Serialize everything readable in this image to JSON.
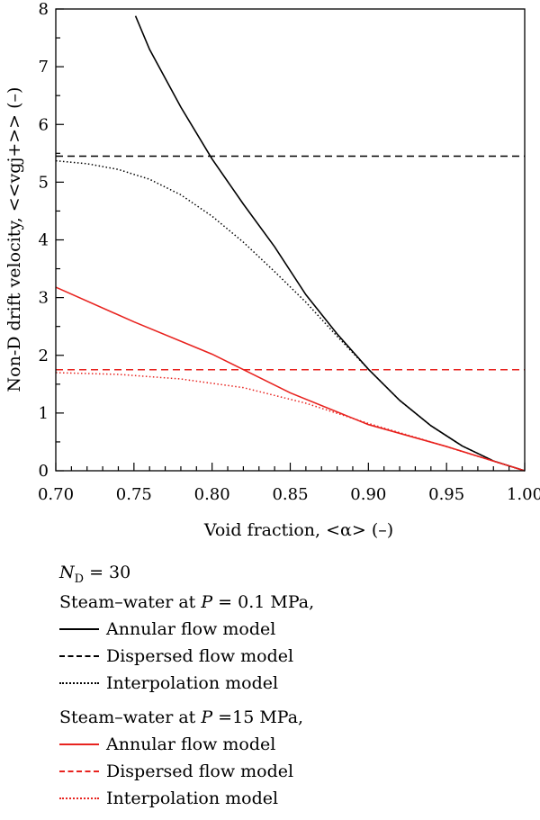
{
  "colors": {
    "series_a": "#000000",
    "series_b": "#e8231f",
    "axis": "#000000"
  },
  "legend": {
    "nd_symbol": "N",
    "nd_sub": "D",
    "nd_value": " = 30",
    "groups": [
      {
        "prefix": "Steam–water at ",
        "pvar": "P",
        "psuffix": " = 0.1 MPa,",
        "color": "#000000",
        "items": [
          {
            "label": "Annular flow model",
            "style": "solid"
          },
          {
            "label": "Dispersed flow model",
            "style": "dashed"
          },
          {
            "label": "Interpolation model",
            "style": "dotted"
          }
        ]
      },
      {
        "prefix": "Steam–water at ",
        "pvar": "P",
        "psuffix": " =15 MPa,",
        "color": "#e8231f",
        "items": [
          {
            "label": "Annular flow model",
            "style": "solid"
          },
          {
            "label": "Dispersed flow model",
            "style": "dashed"
          },
          {
            "label": "Interpolation model",
            "style": "dotted"
          }
        ]
      }
    ]
  },
  "chart_data": {
    "type": "line",
    "title": "",
    "xlabel": "Void fraction, <α> (–)",
    "ylabel": "Non-D drift velocity, <<vgj+>> (–)",
    "xlim": [
      0.7,
      1.0
    ],
    "ylim": [
      0,
      8
    ],
    "xticks": [
      "0.70",
      "0.75",
      "0.80",
      "0.85",
      "0.90",
      "0.95",
      "1.00"
    ],
    "yticks": [
      "0",
      "1",
      "2",
      "3",
      "4",
      "5",
      "6",
      "7",
      "8"
    ],
    "grid": false,
    "legend_position": "below",
    "series": [
      {
        "group": "P = 0.1 MPa",
        "model": "Annular flow model",
        "color": "#000000",
        "style": "solid",
        "x": [
          0.751,
          0.76,
          0.78,
          0.8,
          0.82,
          0.84,
          0.86,
          0.88,
          0.9,
          0.92,
          0.94,
          0.96,
          0.98,
          1.0
        ],
        "y": [
          7.88,
          7.3,
          6.3,
          5.4,
          4.62,
          3.88,
          3.05,
          2.37,
          1.76,
          1.22,
          0.78,
          0.43,
          0.17,
          0.0
        ]
      },
      {
        "group": "P = 0.1 MPa",
        "model": "Dispersed flow model",
        "color": "#000000",
        "style": "dashed",
        "x": [
          0.7,
          1.0
        ],
        "y": [
          5.45,
          5.45
        ]
      },
      {
        "group": "P = 0.1 MPa",
        "model": "Interpolation model",
        "color": "#000000",
        "style": "dotted",
        "x": [
          0.7,
          0.72,
          0.74,
          0.76,
          0.78,
          0.8,
          0.82,
          0.84,
          0.86,
          0.88,
          0.9,
          0.92,
          0.94,
          0.96,
          0.98,
          1.0
        ],
        "y": [
          5.37,
          5.32,
          5.22,
          5.05,
          4.78,
          4.41,
          3.96,
          3.45,
          2.92,
          2.33,
          1.76,
          1.22,
          0.78,
          0.43,
          0.17,
          0.0
        ]
      },
      {
        "group": "P = 15 MPa",
        "model": "Annular flow model",
        "color": "#e8231f",
        "style": "solid",
        "x": [
          0.7,
          0.75,
          0.8,
          0.85,
          0.9,
          0.95,
          1.0
        ],
        "y": [
          3.18,
          2.58,
          2.02,
          1.35,
          0.8,
          0.42,
          0.0
        ]
      },
      {
        "group": "P = 15 MPa",
        "model": "Dispersed flow model",
        "color": "#e8231f",
        "style": "dashed",
        "x": [
          0.7,
          1.0
        ],
        "y": [
          1.75,
          1.75
        ]
      },
      {
        "group": "P = 15 MPa",
        "model": "Interpolation model",
        "color": "#e8231f",
        "style": "dotted",
        "x": [
          0.7,
          0.74,
          0.78,
          0.82,
          0.86,
          0.9,
          0.94,
          0.97,
          1.0
        ],
        "y": [
          1.7,
          1.67,
          1.59,
          1.44,
          1.17,
          0.82,
          0.5,
          0.25,
          0.0
        ]
      }
    ]
  }
}
